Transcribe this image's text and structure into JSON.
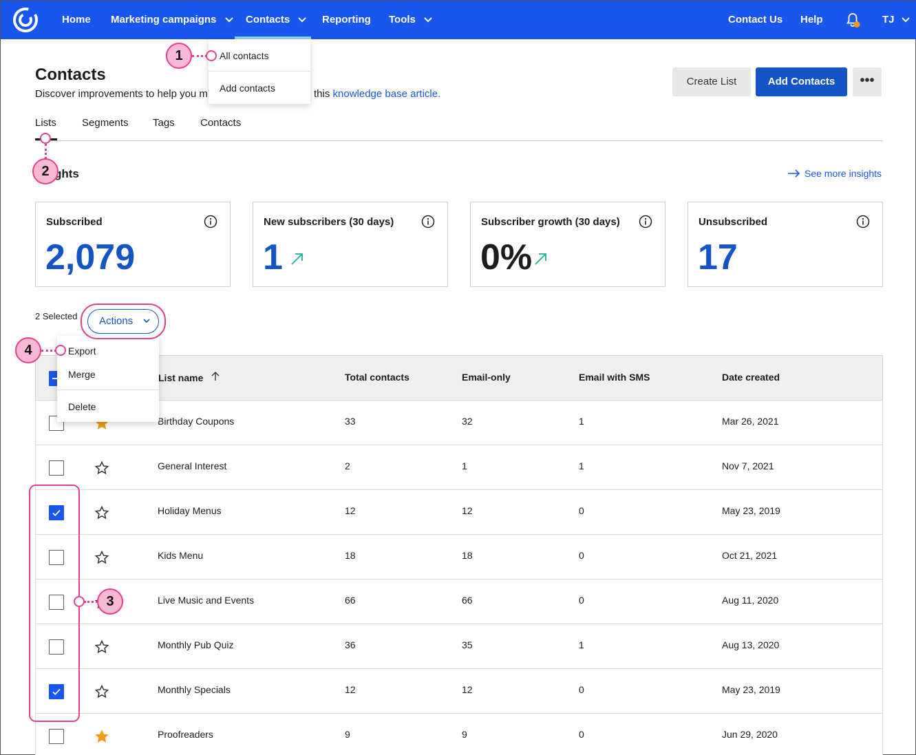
{
  "nav": {
    "items": [
      {
        "label": "Home"
      },
      {
        "label": "Marketing campaigns",
        "chevron": "chevron-down-icon"
      },
      {
        "label": "Contacts",
        "chevron": "chevron-down-icon"
      },
      {
        "label": "Reporting"
      },
      {
        "label": "Tools",
        "chevron": "chevron-down-icon"
      }
    ],
    "right": {
      "contact_us": "Contact Us",
      "help": "Help",
      "user_initials": "TJ"
    },
    "contacts_dropdown": {
      "all_contacts": "All contacts",
      "add_contacts": "Add contacts"
    },
    "brand_color": "#1856ed"
  },
  "header": {
    "title": "Contacts",
    "description_part1": "Discover improvements to help you m",
    "description_part2": "this ",
    "kb_link": "knowledge base article.",
    "buttons": {
      "create_list": "Create List",
      "add_contacts": "Add Contacts",
      "more": "•••"
    }
  },
  "tabs": [
    "Lists",
    "Segments",
    "Tags",
    "Contacts"
  ],
  "insights": {
    "title": "ghts",
    "see_more": "See more insights",
    "cards": [
      {
        "title": "Subscribed",
        "value": "2,079",
        "color": "#1554c4"
      },
      {
        "title": "New subscribers (30 days)",
        "value": "1",
        "color": "#1554c4",
        "trend": "up-arrow-icon"
      },
      {
        "title": "Subscriber growth (30 days)",
        "value": "0%",
        "color": "#1c1c1c",
        "trend": "up-arrow-icon"
      },
      {
        "title": "Unsubscribed",
        "value": "17",
        "color": "#1554c4"
      }
    ]
  },
  "selection": {
    "count_label": "2 Selected",
    "actions_label": "Actions",
    "actions_menu": {
      "export": "Export",
      "merge": "Merge",
      "delete": "Delete"
    }
  },
  "table": {
    "columns": [
      "List name",
      "Total contacts",
      "Email-only",
      "Email with SMS",
      "Date created"
    ],
    "rows": [
      {
        "name": "Birthday Coupons",
        "total": "33",
        "email_only": "32",
        "sms": "1",
        "date": "Mar 26, 2021",
        "checked": false,
        "starred": true
      },
      {
        "name": "General Interest",
        "total": "2",
        "email_only": "1",
        "sms": "1",
        "date": "Nov 7, 2021",
        "checked": false,
        "starred": false
      },
      {
        "name": "Holiday Menus",
        "total": "12",
        "email_only": "12",
        "sms": "0",
        "date": "May 23, 2019",
        "checked": true,
        "starred": false
      },
      {
        "name": "Kids Menu",
        "total": "18",
        "email_only": "18",
        "sms": "0",
        "date": "Oct 21, 2021",
        "checked": false,
        "starred": false
      },
      {
        "name": "Live Music and Events",
        "total": "66",
        "email_only": "66",
        "sms": "0",
        "date": "Aug 11, 2020",
        "checked": false,
        "starred": false
      },
      {
        "name": "Monthly Pub Quiz",
        "total": "36",
        "email_only": "35",
        "sms": "1",
        "date": "Aug 13, 2020",
        "checked": false,
        "starred": false
      },
      {
        "name": "Monthly Specials",
        "total": "12",
        "email_only": "12",
        "sms": "0",
        "date": "May 23, 2019",
        "checked": true,
        "starred": false
      },
      {
        "name": "Proofreaders",
        "total": "9",
        "email_only": "9",
        "sms": "0",
        "date": "Jun 29, 2020",
        "checked": false,
        "starred": true
      }
    ]
  },
  "callouts": [
    "1",
    "2",
    "3",
    "4"
  ]
}
